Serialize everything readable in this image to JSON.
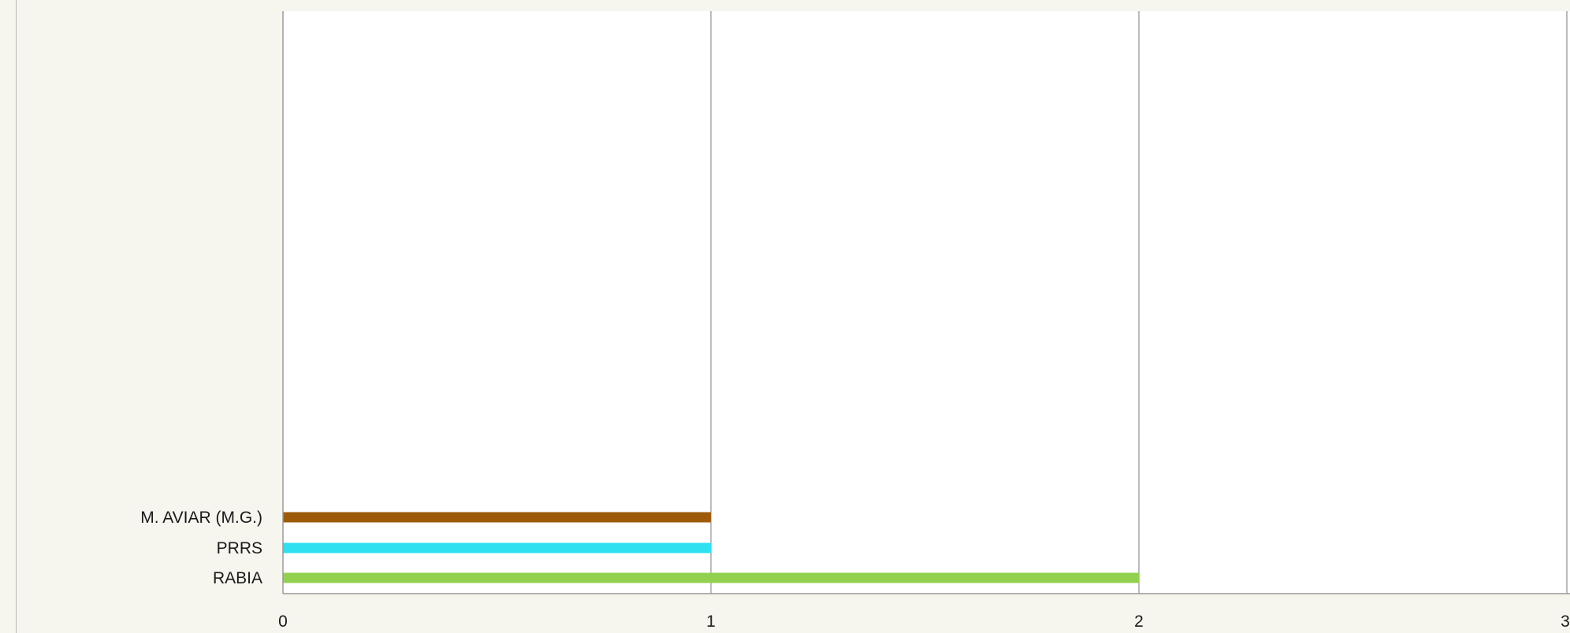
{
  "chart_data": {
    "type": "bar",
    "orientation": "horizontal",
    "title": "",
    "xlabel": "",
    "ylabel": "",
    "categories": [
      "M. AVIAR (M.G.)",
      "PRRS",
      "RABIA"
    ],
    "values": [
      1,
      1,
      2
    ],
    "colors": [
      "#9c5a0a",
      "#2ee0f0",
      "#92d050"
    ],
    "xlim": [
      0,
      3
    ],
    "xticks": [
      0,
      1,
      2,
      3
    ],
    "grid": true,
    "legend": "none"
  }
}
